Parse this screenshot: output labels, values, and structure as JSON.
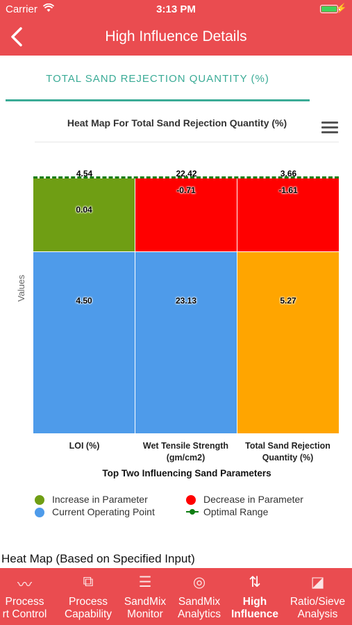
{
  "status": {
    "carrier": "Carrier",
    "time": "3:13 PM"
  },
  "nav": {
    "back_icon": "chevron-left-icon",
    "title": "High Influence Details"
  },
  "tab_title": "TOTAL SAND REJECTION QUANTITY (%)",
  "chart_data": {
    "type": "heatmap",
    "title": "Heat Map For Total Sand Rejection Quantity (%)",
    "ylabel": "Values",
    "xlabel": "Top Two Influencing Sand Parameters",
    "categories": [
      {
        "line1": "LOI (%)",
        "line2": ""
      },
      {
        "line1": "Wet Tensile Strength",
        "line2": "(gm/cm2)"
      },
      {
        "line1": "Total Sand Rejection",
        "line2": "Quantity (%)"
      }
    ],
    "optimal_range": {
      "name": "Optimal Range",
      "values": [
        "4.54",
        "22.42",
        "3.66"
      ],
      "color": "#0e7d12"
    },
    "change": {
      "values": [
        "0.04",
        "-0.71",
        "-1.61"
      ],
      "colors": [
        "#6f9e14",
        "#ff0000",
        "#ff0000"
      ]
    },
    "current": {
      "values": [
        "4.50",
        "23.13",
        "5.27"
      ],
      "colors": [
        "#4e9bea",
        "#4e9bea",
        "#ffa500"
      ]
    },
    "legend": [
      {
        "label": "Increase in Parameter",
        "color": "#6f9e14"
      },
      {
        "label": "Decrease in Parameter",
        "color": "#ff0000"
      },
      {
        "label": "Current Operating Point",
        "color": "#4e9bea"
      },
      {
        "label": "Optimal Range",
        "color": "#0e7d12"
      }
    ]
  },
  "section_heading": "Heat Map (Based on Specified Input)",
  "tabbar": [
    {
      "line1": "Process",
      "line2": "rt Control",
      "icon": "trend-icon"
    },
    {
      "line1": "Process",
      "line2": "Capability",
      "icon": "capability-icon"
    },
    {
      "line1": "SandMix",
      "line2": "Monitor",
      "icon": "list-icon"
    },
    {
      "line1": "SandMix",
      "line2": "Analytics",
      "icon": "analytics-icon"
    },
    {
      "line1": "High",
      "line2": "Influence",
      "icon": "sort-arrows-icon"
    },
    {
      "line1": "Ratio/Sieve",
      "line2": "Analysis",
      "icon": "gauge-icon"
    }
  ]
}
